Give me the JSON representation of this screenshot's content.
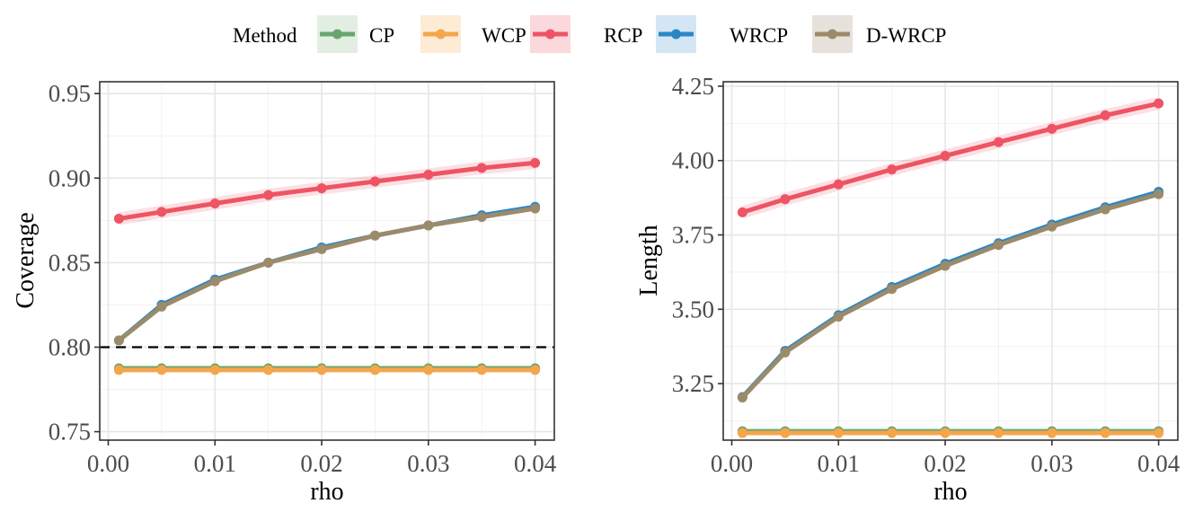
{
  "legend": {
    "title": "Method",
    "entries": [
      {
        "name": "CP",
        "color": "#6aa56e",
        "bg": "#e3eee2"
      },
      {
        "name": "WCP",
        "color": "#f5a54a",
        "bg": "#fdebd6"
      },
      {
        "name": "RCP",
        "color": "#ee5464",
        "bg": "#fbd8dc"
      },
      {
        "name": "WRCP",
        "color": "#2b86c6",
        "bg": "#d4e6f3"
      },
      {
        "name": "D-WRCP",
        "color": "#9b8b6a",
        "bg": "#e6e2db"
      }
    ]
  },
  "chart_data": [
    {
      "type": "line",
      "xlabel": "rho",
      "ylabel": "Coverage",
      "xlim": [
        -0.0008,
        0.0418
      ],
      "ylim": [
        0.745,
        0.957
      ],
      "xticks": [
        0.0,
        0.01,
        0.02,
        0.03,
        0.04
      ],
      "xtick_labels": [
        "0.00",
        "0.01",
        "0.02",
        "0.03",
        "0.04"
      ],
      "yticks": [
        0.75,
        0.8,
        0.85,
        0.9,
        0.95
      ],
      "ytick_labels": [
        "0.75",
        "0.80",
        "0.85",
        "0.90",
        "0.95"
      ],
      "grid": true,
      "reference_line": {
        "y": 0.8,
        "style": "dashed"
      },
      "x": [
        0.001,
        0.005,
        0.01,
        0.015,
        0.02,
        0.025,
        0.03,
        0.035,
        0.04
      ],
      "series": [
        {
          "name": "CP",
          "color": "#6aa56e",
          "values": [
            0.7875,
            0.7875,
            0.7875,
            0.7875,
            0.7875,
            0.7875,
            0.7875,
            0.7875,
            0.7875
          ]
        },
        {
          "name": "WCP",
          "color": "#f5a54a",
          "values": [
            0.7865,
            0.7865,
            0.7865,
            0.7865,
            0.7865,
            0.7865,
            0.7865,
            0.7865,
            0.7865
          ]
        },
        {
          "name": "RCP",
          "color": "#ee5464",
          "values": [
            0.876,
            0.88,
            0.885,
            0.89,
            0.894,
            0.898,
            0.902,
            0.906,
            0.909
          ]
        },
        {
          "name": "WRCP",
          "color": "#2b86c6",
          "values": [
            0.804,
            0.825,
            0.84,
            0.85,
            0.859,
            0.866,
            0.872,
            0.878,
            0.883
          ]
        },
        {
          "name": "D-WRCP",
          "color": "#9b8b6a",
          "values": [
            0.804,
            0.824,
            0.839,
            0.85,
            0.858,
            0.866,
            0.872,
            0.877,
            0.882
          ]
        }
      ]
    },
    {
      "type": "line",
      "xlabel": "rho",
      "ylabel": "Length",
      "xlim": [
        -0.0008,
        0.0418
      ],
      "ylim": [
        3.06,
        4.265
      ],
      "xticks": [
        0.0,
        0.01,
        0.02,
        0.03,
        0.04
      ],
      "xtick_labels": [
        "0.00",
        "0.01",
        "0.02",
        "0.03",
        "0.04"
      ],
      "yticks": [
        3.25,
        3.5,
        3.75,
        4.0,
        4.25
      ],
      "ytick_labels": [
        "3.25",
        "3.50",
        "3.75",
        "4.00",
        "4.25"
      ],
      "grid": true,
      "x": [
        0.001,
        0.005,
        0.01,
        0.015,
        0.02,
        0.025,
        0.03,
        0.035,
        0.04
      ],
      "series": [
        {
          "name": "CP",
          "color": "#6aa56e",
          "values": [
            3.09,
            3.09,
            3.09,
            3.09,
            3.09,
            3.09,
            3.09,
            3.09,
            3.09
          ]
        },
        {
          "name": "WCP",
          "color": "#f5a54a",
          "values": [
            3.084,
            3.084,
            3.084,
            3.084,
            3.084,
            3.084,
            3.084,
            3.084,
            3.084
          ]
        },
        {
          "name": "RCP",
          "color": "#ee5464",
          "values": [
            3.826,
            3.87,
            3.92,
            3.97,
            4.016,
            4.062,
            4.107,
            4.152,
            4.192
          ]
        },
        {
          "name": "WRCP",
          "color": "#2b86c6",
          "values": [
            3.205,
            3.36,
            3.48,
            3.575,
            3.653,
            3.722,
            3.785,
            3.843,
            3.895
          ]
        },
        {
          "name": "D-WRCP",
          "color": "#9b8b6a",
          "values": [
            3.203,
            3.355,
            3.475,
            3.568,
            3.646,
            3.716,
            3.778,
            3.836,
            3.887
          ]
        }
      ]
    }
  ]
}
